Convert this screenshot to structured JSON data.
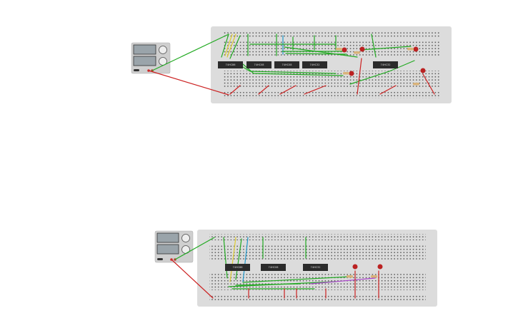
{
  "circuits": [
    {
      "chips": [
        {
          "label": "74HC86"
        },
        {
          "label": "74HC08"
        },
        {
          "label": "74HC08"
        },
        {
          "label": "74HC32"
        },
        {
          "label": "74HC32"
        }
      ]
    },
    {
      "chips": [
        {
          "label": "74HC86"
        },
        {
          "label": "74HC08"
        },
        {
          "label": "74HC32"
        }
      ]
    }
  ]
}
